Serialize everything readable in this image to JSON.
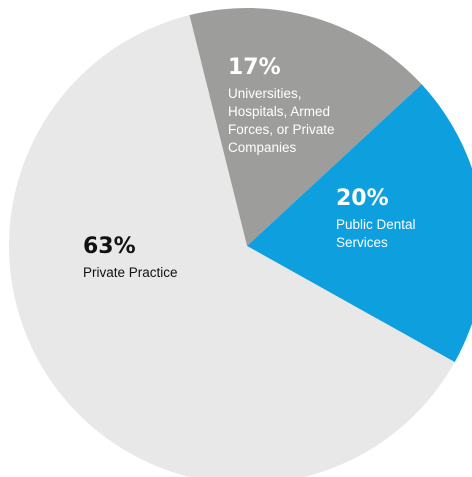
{
  "chart_data": {
    "type": "pie",
    "slices": [
      {
        "value": 17,
        "value_label": "17%",
        "label_lines": [
          "Universities,",
          "Hospitals, Armed",
          "Forces, or Private",
          "Companies"
        ],
        "color": "#9d9d9b",
        "text_color": "#ffffff"
      },
      {
        "value": 20,
        "value_label": "20%",
        "label_lines": [
          "Public Dental",
          "Services"
        ],
        "color": "#0e9fdf",
        "text_color": "#ffffff"
      },
      {
        "value": 63,
        "value_label": "63%",
        "label_lines": [
          "Private Practice"
        ],
        "color": "#e8e8e8",
        "text_color": "#111111"
      }
    ],
    "title": "",
    "legend": "none",
    "start_angle_deg": -14
  }
}
